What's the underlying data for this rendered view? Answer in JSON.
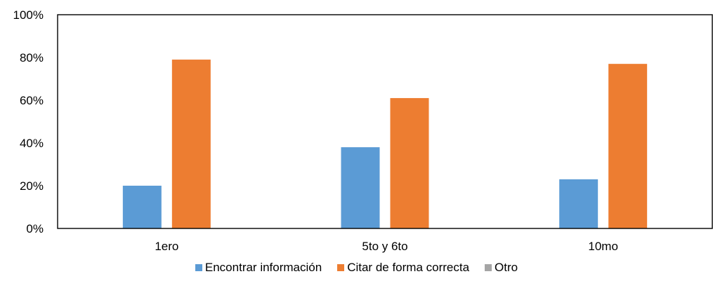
{
  "chart_data": {
    "type": "bar",
    "title": "",
    "xlabel": "",
    "ylabel": "",
    "ylim": [
      0,
      100
    ],
    "y_ticks": [
      "0%",
      "20%",
      "40%",
      "60%",
      "80%",
      "100%"
    ],
    "y_tick_values": [
      0,
      20,
      40,
      60,
      80,
      100
    ],
    "categories": [
      "1ero",
      "5to y 6to",
      "10mo"
    ],
    "series": [
      {
        "name": "Encontrar información",
        "color": "#5B9BD5",
        "values": [
          20,
          38,
          23
        ]
      },
      {
        "name": "Citar de forma correcta",
        "color": "#ED7D31",
        "values": [
          79,
          61,
          77
        ]
      },
      {
        "name": "Otro",
        "color": "#A5A5A5",
        "values": [
          0,
          0,
          0
        ]
      }
    ],
    "grid": false,
    "legend_position": "bottom"
  }
}
